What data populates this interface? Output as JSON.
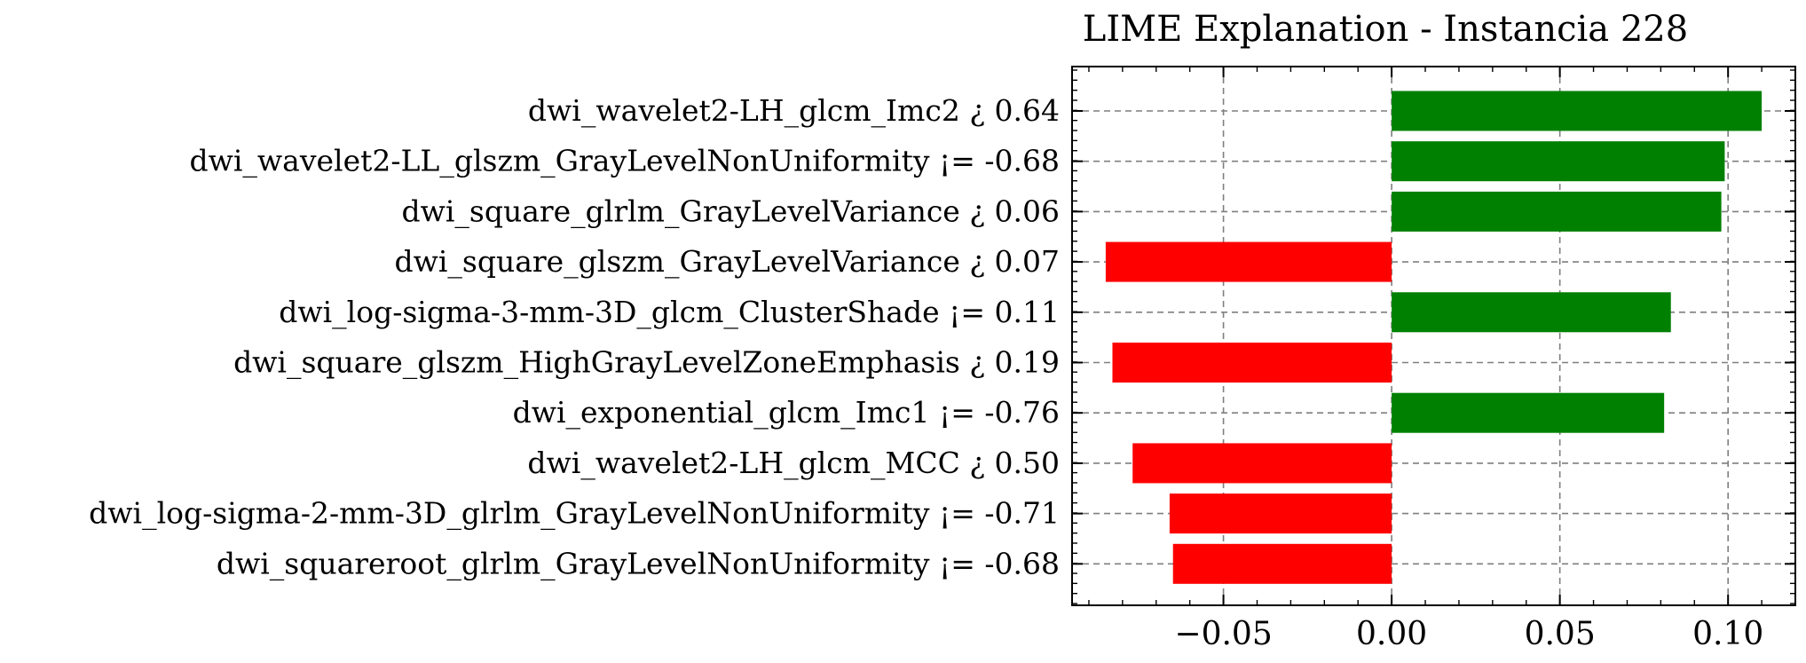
{
  "chart_data": {
    "type": "bar",
    "orientation": "horizontal",
    "title": "LIME Explanation - Instancia 228",
    "xlabel": "",
    "ylabel": "",
    "xlim": [
      -0.095,
      0.12
    ],
    "xticks": [
      -0.05,
      0.0,
      0.05,
      0.1
    ],
    "xtick_labels": [
      "−0.05",
      "0.00",
      "0.05",
      "0.10"
    ],
    "grid": true,
    "colors": {
      "positive": "#008000",
      "negative": "#ff0000",
      "grid": "#7f7f7f"
    },
    "categories": [
      "dwi_wavelet2-LH_glcm_Imc2 ¿ 0.64",
      "dwi_wavelet2-LL_glszm_GrayLevelNonUniformity ¡= -0.68",
      "dwi_square_glrlm_GrayLevelVariance ¿ 0.06",
      "dwi_square_glszm_GrayLevelVariance ¿ 0.07",
      "dwi_log-sigma-3-mm-3D_glcm_ClusterShade ¡= 0.11",
      "dwi_square_glszm_HighGrayLevelZoneEmphasis ¿ 0.19",
      "dwi_exponential_glcm_Imc1 ¡= -0.76",
      "dwi_wavelet2-LH_glcm_MCC ¿ 0.50",
      "dwi_log-sigma-2-mm-3D_glrlm_GrayLevelNonUniformity ¡= -0.71",
      "dwi_squareroot_glrlm_GrayLevelNonUniformity ¡= -0.68"
    ],
    "values": [
      0.11,
      0.099,
      0.098,
      -0.085,
      0.083,
      -0.083,
      0.081,
      -0.077,
      -0.066,
      -0.065
    ]
  }
}
